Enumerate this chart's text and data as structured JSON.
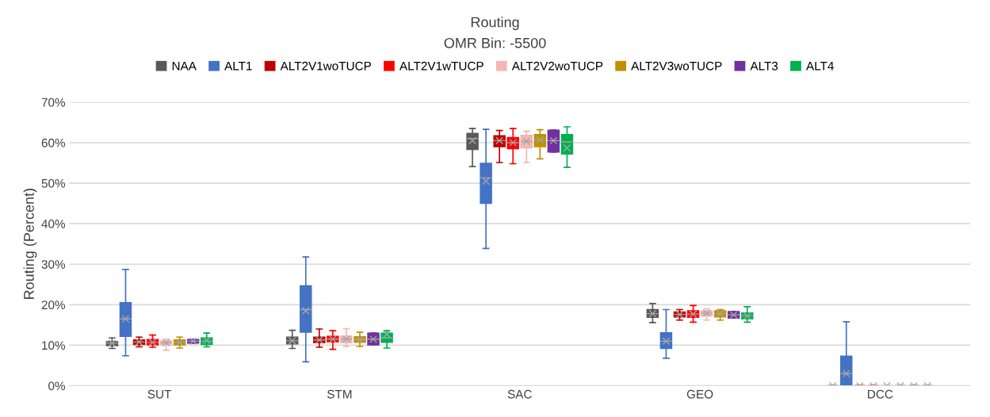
{
  "chart_data": {
    "type": "box",
    "title": "Routing",
    "subtitle": "OMR Bin: -5500",
    "ylabel": "Routing (Percent)",
    "categories": [
      "SUT",
      "STM",
      "SAC",
      "GEO",
      "DCC"
    ],
    "ylim": [
      0,
      70
    ],
    "yticks": [
      {
        "value": 0,
        "label": "0%"
      },
      {
        "value": 10,
        "label": "10%"
      },
      {
        "value": 20,
        "label": "20%"
      },
      {
        "value": 30,
        "label": "30%"
      },
      {
        "value": 40,
        "label": "40%"
      },
      {
        "value": 50,
        "label": "50%"
      },
      {
        "value": 60,
        "label": "60%"
      },
      {
        "value": 70,
        "label": "70%"
      }
    ],
    "grid": "y",
    "legend": "top",
    "series": [
      {
        "name": "NAA",
        "color": "#595959",
        "boxes": [
          {
            "low": 9.2,
            "q1": 9.9,
            "median": 10.5,
            "q3": 10.9,
            "high": 11.8,
            "mean": 10.5
          },
          {
            "low": 9.2,
            "q1": 10.3,
            "median": 11.1,
            "q3": 12,
            "high": 13.7,
            "mean": 11.1
          },
          {
            "low": 54.1,
            "q1": 58.3,
            "median": 61,
            "q3": 62.3,
            "high": 63.5,
            "mean": 60.5
          },
          {
            "low": 15.6,
            "q1": 16.9,
            "median": 17.8,
            "q3": 18.8,
            "high": 20.3,
            "mean": 17.8
          },
          {
            "low": 0,
            "q1": 0,
            "median": 0,
            "q3": 0,
            "high": 0,
            "mean": 0
          }
        ]
      },
      {
        "name": "ALT1",
        "color": "#4472c4",
        "boxes": [
          {
            "low": 7.4,
            "q1": 12.2,
            "median": 16.5,
            "q3": 20.5,
            "high": 28.7,
            "mean": 16.5
          },
          {
            "low": 5.9,
            "q1": 13.2,
            "median": 18.8,
            "q3": 24.7,
            "high": 31.8,
            "mean": 18.5
          },
          {
            "low": 33.9,
            "q1": 45,
            "median": 51.3,
            "q3": 54.9,
            "high": 63.3,
            "mean": 50.5
          },
          {
            "low": 6.8,
            "q1": 9.2,
            "median": 11,
            "q3": 13.1,
            "high": 18.8,
            "mean": 11
          },
          {
            "low": 0,
            "q1": 0,
            "median": 3,
            "q3": 7.3,
            "high": 15.8,
            "mean": 3
          }
        ]
      },
      {
        "name": "ALT2V1woTUCP",
        "color": "#c00000",
        "boxes": [
          {
            "low": 9.6,
            "q1": 10.2,
            "median": 10.8,
            "q3": 11.3,
            "high": 12,
            "mean": 10.8
          },
          {
            "low": 9.5,
            "q1": 10.6,
            "median": 11.3,
            "q3": 12,
            "high": 14,
            "mean": 11.3
          },
          {
            "low": 55.1,
            "q1": 59,
            "median": 60.5,
            "q3": 61.7,
            "high": 63,
            "mean": 60.5
          },
          {
            "low": 16.2,
            "q1": 17,
            "median": 17.6,
            "q3": 18.2,
            "high": 18.8,
            "mean": 17.6
          },
          {
            "low": 0,
            "q1": 0,
            "median": 0,
            "q3": 0,
            "high": 0,
            "mean": 0
          }
        ]
      },
      {
        "name": "ALT2V1wTUCP",
        "color": "#ff0000",
        "boxes": [
          {
            "low": 9.5,
            "q1": 10.1,
            "median": 10.7,
            "q3": 11.4,
            "high": 12.5,
            "mean": 10.7
          },
          {
            "low": 9,
            "q1": 10.8,
            "median": 11.5,
            "q3": 12.2,
            "high": 13.6,
            "mean": 11.5
          },
          {
            "low": 54.8,
            "q1": 58.5,
            "median": 60,
            "q3": 61.3,
            "high": 63.5,
            "mean": 60
          },
          {
            "low": 15.7,
            "q1": 16.9,
            "median": 17.7,
            "q3": 18.5,
            "high": 19.8,
            "mean": 17.7
          },
          {
            "low": 0,
            "q1": 0,
            "median": 0,
            "q3": 0,
            "high": 0,
            "mean": 0
          }
        ]
      },
      {
        "name": "ALT2V2woTUCP",
        "color": "#f4b6b6",
        "boxes": [
          {
            "low": 8.8,
            "q1": 10.1,
            "median": 10.6,
            "q3": 11.1,
            "high": 11.5,
            "mean": 10.6
          },
          {
            "low": 9.7,
            "q1": 10.6,
            "median": 11.5,
            "q3": 12.3,
            "high": 14.1,
            "mean": 11.5
          },
          {
            "low": 55.1,
            "q1": 58.7,
            "median": 60.3,
            "q3": 61.8,
            "high": 62.8,
            "mean": 60.3
          },
          {
            "low": 16.2,
            "q1": 17.2,
            "median": 17.9,
            "q3": 18.5,
            "high": 19,
            "mean": 17.9
          },
          {
            "low": 0,
            "q1": 0,
            "median": 0,
            "q3": 0,
            "high": 0,
            "mean": 0
          }
        ]
      },
      {
        "name": "ALT2V3woTUCP",
        "color": "#bf9000",
        "boxes": [
          {
            "low": 9.3,
            "q1": 10.1,
            "median": 10.7,
            "q3": 11.3,
            "high": 12,
            "mean": 10.7
          },
          {
            "low": 9.7,
            "q1": 10.7,
            "median": 11.4,
            "q3": 12.1,
            "high": 13.2,
            "mean": 11.4
          },
          {
            "low": 56,
            "q1": 59,
            "median": 60.7,
            "q3": 62,
            "high": 63.2,
            "mean": 60.7
          },
          {
            "low": 16.2,
            "q1": 17,
            "median": 17.8,
            "q3": 18.5,
            "high": 18.8,
            "mean": 17.8
          },
          {
            "low": 0,
            "q1": 0,
            "median": 0,
            "q3": 0,
            "high": 0,
            "mean": 0
          }
        ]
      },
      {
        "name": "ALT3",
        "color": "#7030a0",
        "boxes": [
          {
            "low": 10.5,
            "q1": 10.5,
            "median": 11,
            "q3": 11.4,
            "high": 11.4,
            "mean": 11
          },
          {
            "low": 10.1,
            "q1": 10.1,
            "median": 11.5,
            "q3": 13,
            "high": 13,
            "mean": 11.5
          },
          {
            "low": 57.7,
            "q1": 57.7,
            "median": 60.5,
            "q3": 63.1,
            "high": 63.1,
            "mean": 60.5
          },
          {
            "low": 16.7,
            "q1": 16.7,
            "median": 17.5,
            "q3": 18.3,
            "high": 18.3,
            "mean": 17.5
          },
          {
            "low": 0,
            "q1": 0,
            "median": 0,
            "q3": 0,
            "high": 0,
            "mean": 0
          }
        ]
      },
      {
        "name": "ALT4",
        "color": "#00b050",
        "boxes": [
          {
            "low": 9.6,
            "q1": 10.2,
            "median": 11,
            "q3": 11.8,
            "high": 13,
            "mean": 11.2
          },
          {
            "low": 9.3,
            "q1": 10.7,
            "median": 11.8,
            "q3": 13,
            "high": 13.6,
            "mean": 12.7
          },
          {
            "low": 53.9,
            "q1": 57.2,
            "median": 60.2,
            "q3": 62,
            "high": 63.9,
            "mean": 58.7
          },
          {
            "low": 15.7,
            "q1": 16.5,
            "median": 17.3,
            "q3": 18,
            "high": 19.5,
            "mean": 17.2
          },
          {
            "low": 0,
            "q1": 0,
            "median": 0,
            "q3": 0,
            "high": 0,
            "mean": 0
          }
        ]
      }
    ]
  }
}
